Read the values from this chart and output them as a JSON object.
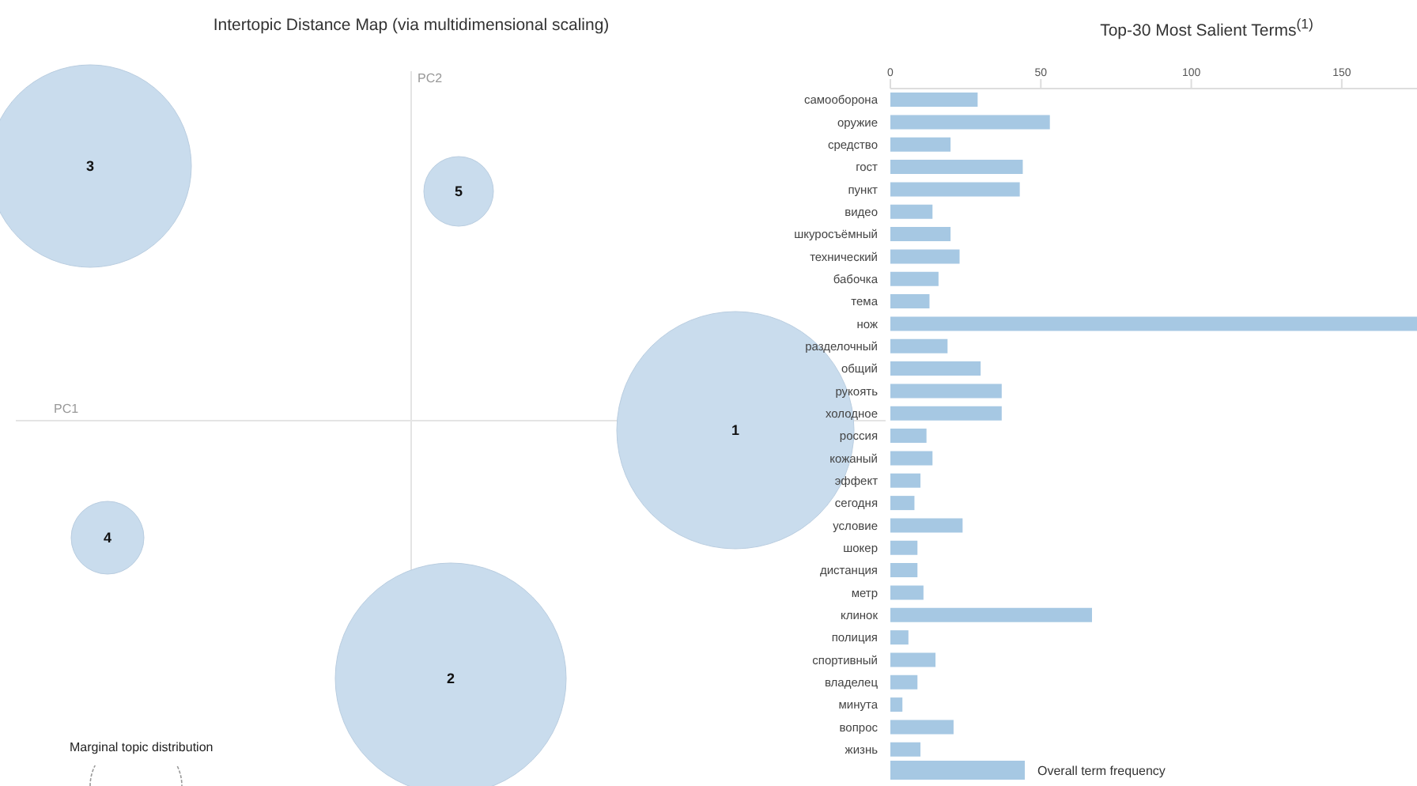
{
  "chart_data": [
    {
      "type": "other",
      "title": "Intertopic Distance Map (via multidimensional scaling)",
      "xlabel": "PC1",
      "ylabel": "PC2",
      "color": "#c9dced",
      "categories": [
        "1",
        "2",
        "3",
        "4",
        "5"
      ],
      "annotations": [
        "Marginal topic distribution"
      ]
    },
    {
      "type": "bar",
      "orientation": "horizontal",
      "title": "Top-30 Most Salient Terms$^{(1)}$",
      "legend": "bottom",
      "xlim": [
        0,
        175
      ],
      "xticks": [
        0,
        50,
        100,
        150
      ],
      "categories": [
        "самооборона",
        "оружие",
        "средство",
        "гост",
        "пункт",
        "видео",
        "шкуросъёмный",
        "технический",
        "бабочка",
        "тема",
        "нож",
        "разделочный",
        "общий",
        "рукоять",
        "холодное",
        "россия",
        "кожаный",
        "эффект",
        "сегодня",
        "условие",
        "шокер",
        "дистанция",
        "метр",
        "клинок",
        "полиция",
        "спортивный",
        "владелец",
        "минута",
        "вопрос",
        "жизнь"
      ],
      "series": [
        {
          "name": "Overall term frequency",
          "color": "#a6c8e3",
          "values": [
            29,
            53,
            20,
            44,
            43,
            14,
            20,
            23,
            16,
            13,
            175,
            19,
            30,
            37,
            37,
            12,
            14,
            10,
            8,
            24,
            9,
            9,
            11,
            67,
            6,
            15,
            9,
            4,
            21,
            10
          ]
        }
      ]
    }
  ]
}
